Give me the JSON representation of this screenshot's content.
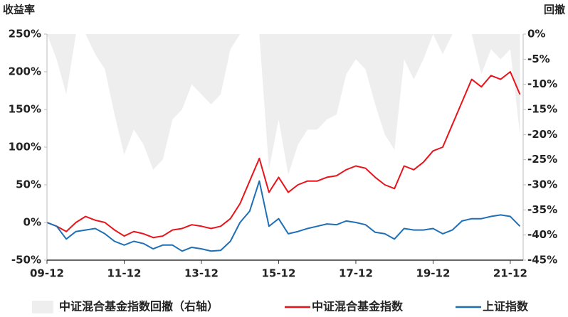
{
  "chart_data": {
    "type": "line",
    "y_label": "收益率",
    "y2_label": "回撤",
    "x": [
      "09-12",
      "10-03",
      "10-06",
      "10-09",
      "10-12",
      "11-03",
      "11-06",
      "11-09",
      "11-12",
      "12-03",
      "12-06",
      "12-09",
      "12-12",
      "13-03",
      "13-06",
      "13-09",
      "13-12",
      "14-03",
      "14-06",
      "14-09",
      "14-12",
      "15-03",
      "15-06",
      "15-09",
      "15-12",
      "16-03",
      "16-06",
      "16-09",
      "16-12",
      "17-03",
      "17-06",
      "17-09",
      "17-12",
      "18-03",
      "18-06",
      "18-09",
      "18-12",
      "19-03",
      "19-06",
      "19-09",
      "19-12",
      "20-03",
      "20-06",
      "20-09",
      "20-12",
      "21-03",
      "21-06",
      "21-09",
      "21-12",
      "22-03"
    ],
    "xlim": [
      "09-12",
      "22-04"
    ],
    "xticks": [
      "09-12",
      "11-12",
      "13-12",
      "15-12",
      "17-12",
      "19-12",
      "21-12"
    ],
    "ylim": [
      -50,
      250
    ],
    "yticks": [
      {
        "value": -50,
        "label": "-50%"
      },
      {
        "value": 0,
        "label": "0%"
      },
      {
        "value": 50,
        "label": "50%"
      },
      {
        "value": 100,
        "label": "100%"
      },
      {
        "value": 150,
        "label": "150%"
      },
      {
        "value": 200,
        "label": "200%"
      },
      {
        "value": 250,
        "label": "250%"
      }
    ],
    "y2lim": [
      -45,
      0
    ],
    "y2ticks": [
      {
        "value": 0,
        "label": "0%"
      },
      {
        "value": -5,
        "label": "-5%"
      },
      {
        "value": -10,
        "label": "-10%"
      },
      {
        "value": -15,
        "label": "-15%"
      },
      {
        "value": -20,
        "label": "-20%"
      },
      {
        "value": -25,
        "label": "-25%"
      },
      {
        "value": -30,
        "label": "-30%"
      },
      {
        "value": -35,
        "label": "-35%"
      },
      {
        "value": -40,
        "label": "-40%"
      },
      {
        "value": -45,
        "label": "-45%"
      }
    ],
    "series": [
      {
        "name": "中证混合基金指数回撤（右轴）",
        "color": "#eeeeee",
        "kind": "area",
        "axis": "y2",
        "values": [
          0,
          -5,
          -12,
          0,
          0,
          -4,
          -7,
          -16,
          -24,
          -19,
          -22,
          -27,
          -25,
          -17,
          -15,
          -10,
          -12,
          -14,
          -12,
          -3,
          0,
          0,
          0,
          -27,
          -17,
          -28,
          -22,
          -19,
          -19,
          -17,
          -16,
          -8,
          -5,
          -7,
          -14,
          -20,
          -23,
          -5,
          -9,
          -5,
          0,
          -4,
          0,
          0,
          0,
          -8,
          -3,
          -5,
          -3,
          -20
        ]
      },
      {
        "name": "中证混合基金指数",
        "color": "#e8141b",
        "kind": "line",
        "values": [
          0,
          -5,
          -12,
          0,
          8,
          3,
          0,
          -10,
          -18,
          -12,
          -15,
          -20,
          -18,
          -10,
          -8,
          -3,
          -5,
          -8,
          -5,
          5,
          25,
          55,
          85,
          40,
          60,
          40,
          50,
          55,
          55,
          60,
          62,
          70,
          75,
          72,
          60,
          50,
          45,
          75,
          70,
          80,
          95,
          100,
          130,
          160,
          190,
          180,
          195,
          190,
          200,
          170
        ]
      },
      {
        "name": "上证指数",
        "color": "#1f6fb5",
        "kind": "line",
        "values": [
          0,
          -5,
          -22,
          -12,
          -10,
          -8,
          -15,
          -25,
          -30,
          -25,
          -28,
          -35,
          -30,
          -30,
          -38,
          -33,
          -35,
          -38,
          -37,
          -25,
          0,
          15,
          55,
          -5,
          5,
          -15,
          -12,
          -8,
          -5,
          -2,
          -3,
          2,
          0,
          -3,
          -13,
          -15,
          -22,
          -8,
          -10,
          -10,
          -8,
          -15,
          -10,
          2,
          5,
          5,
          8,
          10,
          8,
          -5
        ]
      }
    ]
  }
}
